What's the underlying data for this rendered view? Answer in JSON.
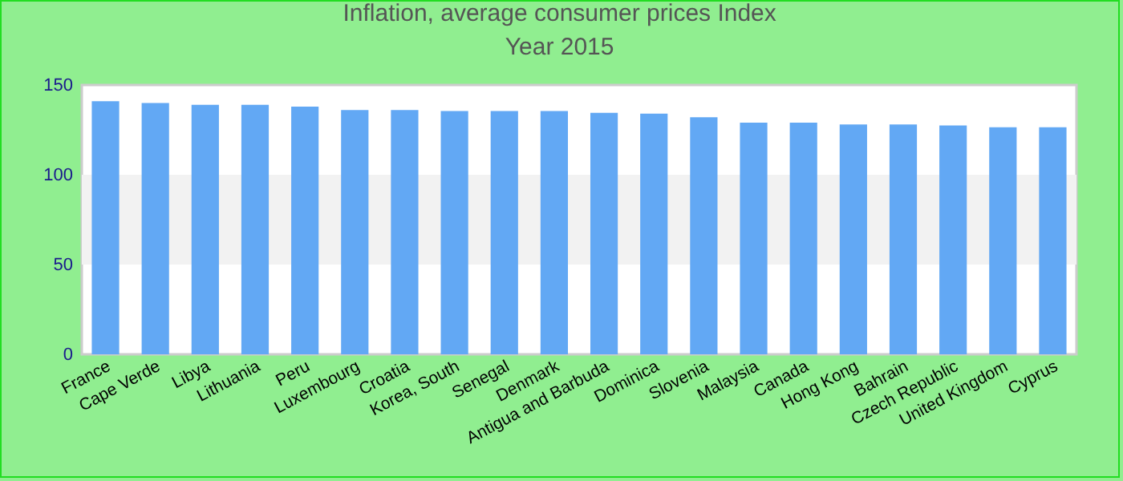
{
  "chart_data": {
    "type": "bar",
    "title": "Inflation, average consumer prices  Index",
    "subtitle": "Year 2015",
    "categories": [
      "France",
      "Cape Verde",
      "Libya",
      "Lithuania",
      "Peru",
      "Luxembourg",
      "Croatia",
      "Korea, South",
      "Senegal",
      "Denmark",
      "Antigua and Barbuda",
      "Dominica",
      "Slovenia",
      "Malaysia",
      "Canada",
      "Hong Kong",
      "Bahrain",
      "Czech Republic",
      "United Kingdom",
      "Cyprus"
    ],
    "values": [
      141,
      140,
      139,
      139,
      138,
      136,
      136,
      135.5,
      135.5,
      135.5,
      134.5,
      134,
      132,
      129,
      129,
      128,
      128,
      127.5,
      126.5,
      126.5
    ],
    "color": "#62a8f4",
    "ylim": [
      0,
      150
    ],
    "yticks": [
      0,
      50,
      100,
      150
    ],
    "bands": [
      {
        "axis": "y",
        "from": 50,
        "to": 100,
        "color": "#f2f2f2"
      }
    ],
    "grid": false
  }
}
